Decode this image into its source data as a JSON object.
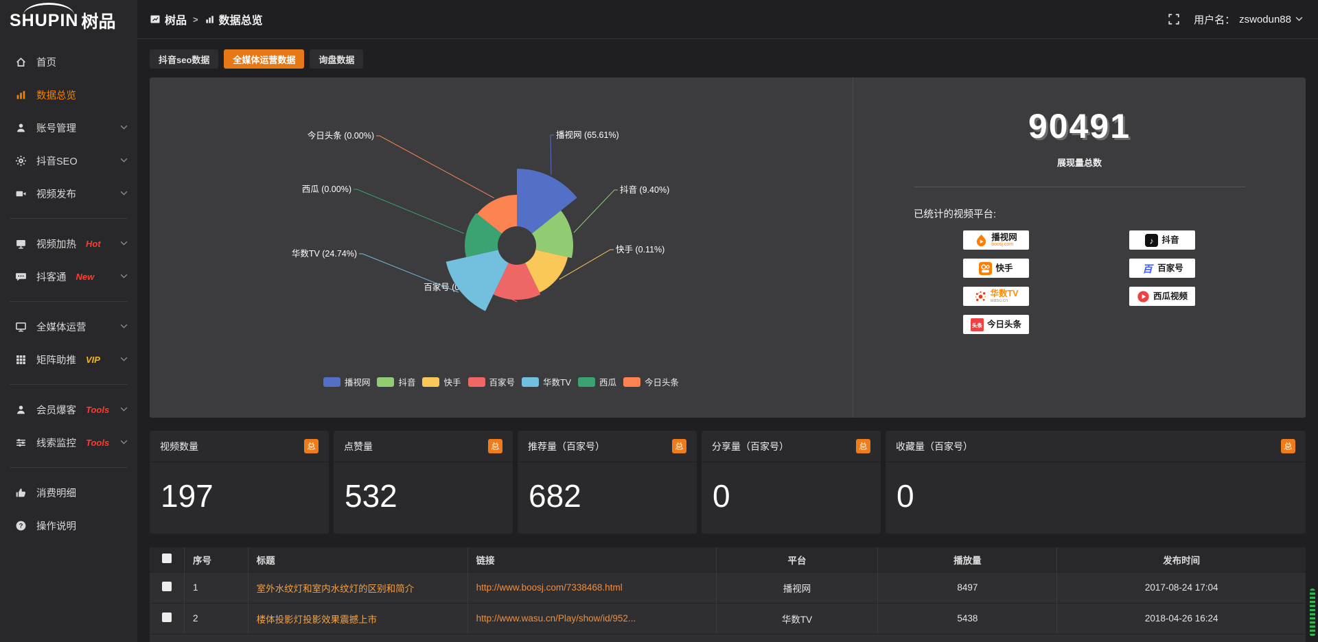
{
  "logo": {
    "en": "SHUPIN",
    "cn": "树品"
  },
  "topbar": {
    "breadcrumb_root": "树品",
    "breadcrumb_sep": ">",
    "breadcrumb_current": "数据总览",
    "username_label": "用户名：",
    "username": "zswodun88"
  },
  "sidebar": {
    "groups": [
      {
        "items": [
          {
            "label": "首页",
            "icon": "home",
            "chevron": false,
            "active": false
          },
          {
            "label": "数据总览",
            "icon": "chart-bars",
            "chevron": false,
            "active": true
          },
          {
            "label": "账号管理",
            "icon": "user",
            "chevron": true,
            "active": false
          },
          {
            "label": "抖音SEO",
            "icon": "gear",
            "chevron": true,
            "active": false
          },
          {
            "label": "视频发布",
            "icon": "video-camera",
            "chevron": true,
            "active": false
          }
        ]
      },
      {
        "items": [
          {
            "label": "视频加热",
            "icon": "screen",
            "badge": "Hot",
            "badge_color": "#ff3b30",
            "chevron": true,
            "active": false
          },
          {
            "label": "抖客通",
            "icon": "chat",
            "badge": "New",
            "badge_color": "#ff3b30",
            "chevron": true,
            "active": false
          }
        ]
      },
      {
        "items": [
          {
            "label": "全媒体运营",
            "icon": "monitor",
            "chevron": true,
            "active": false
          },
          {
            "label": "矩阵助推",
            "icon": "grid",
            "badge": "VIP",
            "badge_color": "#f5b31d",
            "chevron": true,
            "active": false
          }
        ]
      },
      {
        "items": [
          {
            "label": "会员爆客",
            "icon": "user2",
            "badge": "Tools",
            "badge_color": "#ff3b30",
            "chevron": true,
            "active": false
          },
          {
            "label": "线索监控",
            "icon": "sliders",
            "badge": "Tools",
            "badge_color": "#ff3b30",
            "chevron": true,
            "active": false
          }
        ]
      },
      {
        "items": [
          {
            "label": "消费明细",
            "icon": "thumb",
            "chevron": false,
            "active": false
          },
          {
            "label": "操作说明",
            "icon": "question",
            "chevron": false,
            "active": false
          }
        ]
      }
    ]
  },
  "tabs": [
    {
      "label": "抖音seo数据",
      "active": false
    },
    {
      "label": "全媒体运营数据",
      "active": true
    },
    {
      "label": "询盘数据",
      "active": false
    }
  ],
  "chart_data": {
    "type": "pie",
    "variant": "nightingale-rose",
    "title": "",
    "unit": "%",
    "label_format": "{name} ({value}%)",
    "legend_position": "bottom-center",
    "slices": [
      {
        "name": "播视网",
        "value": 65.61,
        "color": "#5470c6"
      },
      {
        "name": "抖音",
        "value": 9.4,
        "color": "#91cc75"
      },
      {
        "name": "快手",
        "value": 0.11,
        "color": "#fac858"
      },
      {
        "name": "百家号",
        "value": 0.15,
        "color": "#ee6666"
      },
      {
        "name": "华数TV",
        "value": 24.74,
        "color": "#73c0de"
      },
      {
        "name": "西瓜",
        "value": 0.0,
        "color": "#3ba272"
      },
      {
        "name": "今日头条",
        "value": 0.0,
        "color": "#fc8452"
      }
    ],
    "legend": [
      "播视网",
      "抖音",
      "快手",
      "百家号",
      "华数TV",
      "西瓜",
      "今日头条"
    ]
  },
  "summary": {
    "total_value": "90491",
    "total_label": "展现量总数",
    "platforms_title": "已统计的视频平台:",
    "platforms": [
      {
        "icon": "boosj",
        "name": "播视网",
        "sub": "boosj.com",
        "name_color": "#1a1a1a",
        "sub_color": "#ff7e00"
      },
      {
        "icon": "kuaishou",
        "name": "快手",
        "name_color": "#1a1a1a"
      },
      {
        "icon": "wasu",
        "name": "华数TV",
        "sub": "wasu.cn",
        "name_color": "#ff8c00",
        "sub_color": "#9a9a9a"
      },
      {
        "icon": "toutiao",
        "name": "今日头条",
        "name_color": "#1a1a1a"
      },
      {
        "icon": "douyin",
        "name": "抖音",
        "name_color": "#1a1a1a"
      },
      {
        "icon": "baijiahao",
        "name": "百家号",
        "name_color": "#1a1a1a"
      },
      {
        "icon": "xigua",
        "name": "西瓜视频",
        "name_color": "#1a1a1a"
      }
    ]
  },
  "stat_cards": [
    {
      "label": "视频数量",
      "badge": "总",
      "value": "197"
    },
    {
      "label": "点赞量",
      "badge": "总",
      "value": "532"
    },
    {
      "label": "推荐量（百家号）",
      "badge": "总",
      "value": "682"
    },
    {
      "label": "分享量（百家号）",
      "badge": "总",
      "value": "0"
    },
    {
      "label": "收藏量（百家号）",
      "badge": "总",
      "value": "0"
    }
  ],
  "table": {
    "headers": [
      "序号",
      "标题",
      "链接",
      "平台",
      "播放量",
      "发布时间"
    ],
    "rows": [
      {
        "index": "1",
        "title": "室外水纹灯和室内水纹灯的区别和简介",
        "link": "http://www.boosj.com/7338468.html",
        "platform": "播视网",
        "views": "8497",
        "published": "2017-08-24 17:04"
      },
      {
        "index": "2",
        "title": "楼体投影灯投影效果震撼上市",
        "link": "http://www.wasu.cn/Play/show/id/952...",
        "platform": "华数TV",
        "views": "5438",
        "published": "2018-04-26 16:24"
      }
    ]
  },
  "colors": {
    "accent": "#e67817",
    "badge_orange": "#ef7c1b",
    "link": "#ef8e3f",
    "title_link": "#f4a143",
    "badge_red": "#ff3b30",
    "badge_gold": "#f5b31d",
    "panel_bg": "#3c3c3f"
  }
}
